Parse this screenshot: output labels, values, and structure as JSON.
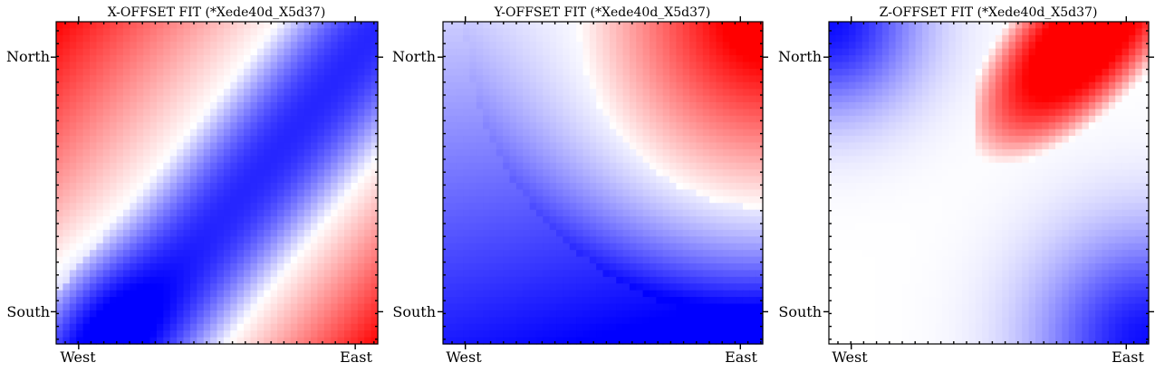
{
  "chart_data": [
    {
      "type": "heatmap",
      "title": "X-OFFSET FIT (*Xede40d_X5d37)",
      "x_tick_labels": [
        "West",
        "East"
      ],
      "y_tick_labels": [
        "North",
        "South"
      ],
      "colormap": [
        "#0000ff",
        "#ffffff",
        "#ff0000"
      ],
      "color_range": [
        -1,
        1
      ],
      "grid_size": [
        48,
        48
      ],
      "pattern": "x-offset"
    },
    {
      "type": "heatmap",
      "title": "Y-OFFSET FIT (*Xede40d_X5d37)",
      "x_tick_labels": [
        "West",
        "East"
      ],
      "y_tick_labels": [
        "North",
        "South"
      ],
      "colormap": [
        "#0000ff",
        "#ffffff",
        "#ff0000"
      ],
      "color_range": [
        -1,
        1
      ],
      "grid_size": [
        48,
        48
      ],
      "pattern": "y-offset"
    },
    {
      "type": "heatmap",
      "title": "Z-OFFSET FIT (*Xede40d_X5d37)",
      "x_tick_labels": [
        "West",
        "East"
      ],
      "y_tick_labels": [
        "North",
        "South"
      ],
      "colormap": [
        "#0000ff",
        "#ffffff",
        "#ff0000"
      ],
      "color_range": [
        -1,
        1
      ],
      "grid_size": [
        48,
        48
      ],
      "pattern": "z-offset"
    }
  ]
}
